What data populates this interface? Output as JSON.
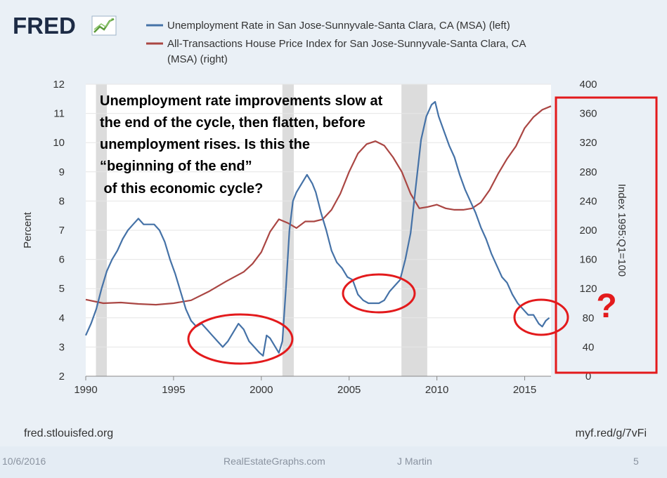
{
  "brand": {
    "name": "FRED"
  },
  "legend": [
    {
      "label": "Unemployment Rate in San Jose-Sunnyvale-Santa Clara, CA (MSA) (left)",
      "color": "#4572a7"
    },
    {
      "label_line1": "All-Transactions House Price Index for San Jose-Sunnyvale-Santa Clara, CA",
      "label_line2": "(MSA) (right)",
      "color": "#aa4643"
    }
  ],
  "annotation": {
    "lines": [
      "Unemployment rate improvements slow at",
      "the end of the cycle, then flatten, before",
      "unemployment rises. Is this the",
      "“beginning of the end”",
      " of this economic cycle?"
    ],
    "question_mark": "?"
  },
  "source_left": "fred.stlouisfed.org",
  "source_right": "myf.red/g/7vFi",
  "footer": {
    "date": "10/6/2016",
    "site": "RealEstateGraphs.com",
    "author": "J Martin",
    "page": "5"
  },
  "colors": {
    "unemployment": "#4572a7",
    "hpi": "#aa4643",
    "recession": "#dcdcdc",
    "highlight": "#e31a1c"
  },
  "chart_data": {
    "type": "line",
    "title": "",
    "xlabel": "",
    "ylabel": "Percent",
    "y2label": "Index 1995:Q1=100",
    "xlim": [
      1990,
      2016.5
    ],
    "ylim": [
      2,
      12
    ],
    "y2lim": [
      0,
      400
    ],
    "x_ticks": [
      "1990",
      "1995",
      "2000",
      "2005",
      "2010",
      "2015"
    ],
    "y_ticks": [
      "2",
      "3",
      "4",
      "5",
      "6",
      "7",
      "8",
      "9",
      "10",
      "11",
      "12"
    ],
    "y2_ticks": [
      "0",
      "40",
      "80",
      "120",
      "160",
      "200",
      "240",
      "280",
      "320",
      "360",
      "400"
    ],
    "recessions": [
      [
        1990.58,
        1991.2
      ],
      [
        2001.2,
        2001.85
      ],
      [
        2007.98,
        2009.45
      ]
    ],
    "grid": true,
    "legend_position": "top",
    "series": [
      {
        "name": "Unemployment Rate in San Jose-Sunnyvale-Santa Clara, CA (MSA) (left)",
        "axis": "left",
        "x": [
          1990.0,
          1990.3,
          1990.6,
          1990.9,
          1991.2,
          1991.5,
          1991.8,
          1992.1,
          1992.4,
          1992.7,
          1993.0,
          1993.3,
          1993.6,
          1993.9,
          1994.2,
          1994.5,
          1994.8,
          1995.1,
          1995.4,
          1995.7,
          1996.0,
          1996.3,
          1996.6,
          1996.9,
          1997.2,
          1997.5,
          1997.8,
          1998.1,
          1998.4,
          1998.7,
          1999.0,
          1999.3,
          1999.6,
          1999.9,
          2000.1,
          2000.3,
          2000.5,
          2000.8,
          2001.0,
          2001.2,
          2001.4,
          2001.6,
          2001.8,
          2002.0,
          2002.3,
          2002.6,
          2002.9,
          2003.1,
          2003.4,
          2003.7,
          2004.0,
          2004.3,
          2004.6,
          2004.9,
          2005.2,
          2005.5,
          2005.8,
          2006.1,
          2006.4,
          2006.7,
          2007.0,
          2007.3,
          2007.6,
          2007.9,
          2008.2,
          2008.5,
          2008.8,
          2009.1,
          2009.4,
          2009.7,
          2009.9,
          2010.1,
          2010.4,
          2010.7,
          2011.0,
          2011.3,
          2011.6,
          2011.9,
          2012.2,
          2012.5,
          2012.8,
          2013.1,
          2013.4,
          2013.7,
          2014.0,
          2014.3,
          2014.6,
          2014.9,
          2015.2,
          2015.5,
          2015.8,
          2016.0,
          2016.2,
          2016.4
        ],
        "y": [
          3.4,
          3.8,
          4.3,
          5.0,
          5.6,
          6.0,
          6.3,
          6.7,
          7.0,
          7.2,
          7.4,
          7.2,
          7.2,
          7.2,
          7.0,
          6.6,
          6.0,
          5.5,
          4.9,
          4.3,
          3.9,
          3.7,
          3.8,
          3.6,
          3.4,
          3.2,
          3.0,
          3.2,
          3.5,
          3.8,
          3.6,
          3.2,
          3.0,
          2.8,
          2.7,
          3.4,
          3.3,
          3.0,
          2.8,
          3.2,
          5.0,
          7.0,
          8.0,
          8.3,
          8.6,
          8.9,
          8.6,
          8.3,
          7.6,
          7.0,
          6.3,
          5.9,
          5.7,
          5.4,
          5.3,
          4.8,
          4.6,
          4.5,
          4.5,
          4.5,
          4.6,
          4.9,
          5.1,
          5.3,
          6.0,
          6.9,
          8.5,
          10.1,
          10.9,
          11.3,
          11.4,
          10.9,
          10.4,
          9.9,
          9.5,
          8.9,
          8.4,
          8.0,
          7.6,
          7.1,
          6.7,
          6.2,
          5.8,
          5.4,
          5.2,
          4.8,
          4.5,
          4.3,
          4.1,
          4.1,
          3.8,
          3.7,
          3.9,
          4.0
        ]
      },
      {
        "name": "All-Transactions House Price Index for San Jose-Sunnyvale-Santa Clara, CA (MSA) (right)",
        "axis": "right",
        "x": [
          1990.0,
          1991.0,
          1992.0,
          1993.0,
          1994.0,
          1995.0,
          1996.0,
          1997.0,
          1998.0,
          1999.0,
          1999.5,
          2000.0,
          2000.5,
          2001.0,
          2001.5,
          2002.0,
          2002.5,
          2003.0,
          2003.5,
          2004.0,
          2004.5,
          2005.0,
          2005.5,
          2006.0,
          2006.5,
          2007.0,
          2007.5,
          2008.0,
          2008.5,
          2009.0,
          2009.5,
          2010.0,
          2010.5,
          2011.0,
          2011.5,
          2012.0,
          2012.5,
          2013.0,
          2013.5,
          2014.0,
          2014.5,
          2015.0,
          2015.5,
          2016.0,
          2016.5
        ],
        "y": [
          105,
          100,
          101,
          99,
          98,
          100,
          104,
          116,
          130,
          143,
          154,
          170,
          198,
          215,
          210,
          203,
          212,
          212,
          215,
          228,
          250,
          280,
          305,
          318,
          322,
          316,
          300,
          280,
          250,
          230,
          232,
          235,
          230,
          228,
          228,
          230,
          238,
          255,
          278,
          298,
          315,
          340,
          355,
          365,
          370
        ]
      }
    ]
  }
}
